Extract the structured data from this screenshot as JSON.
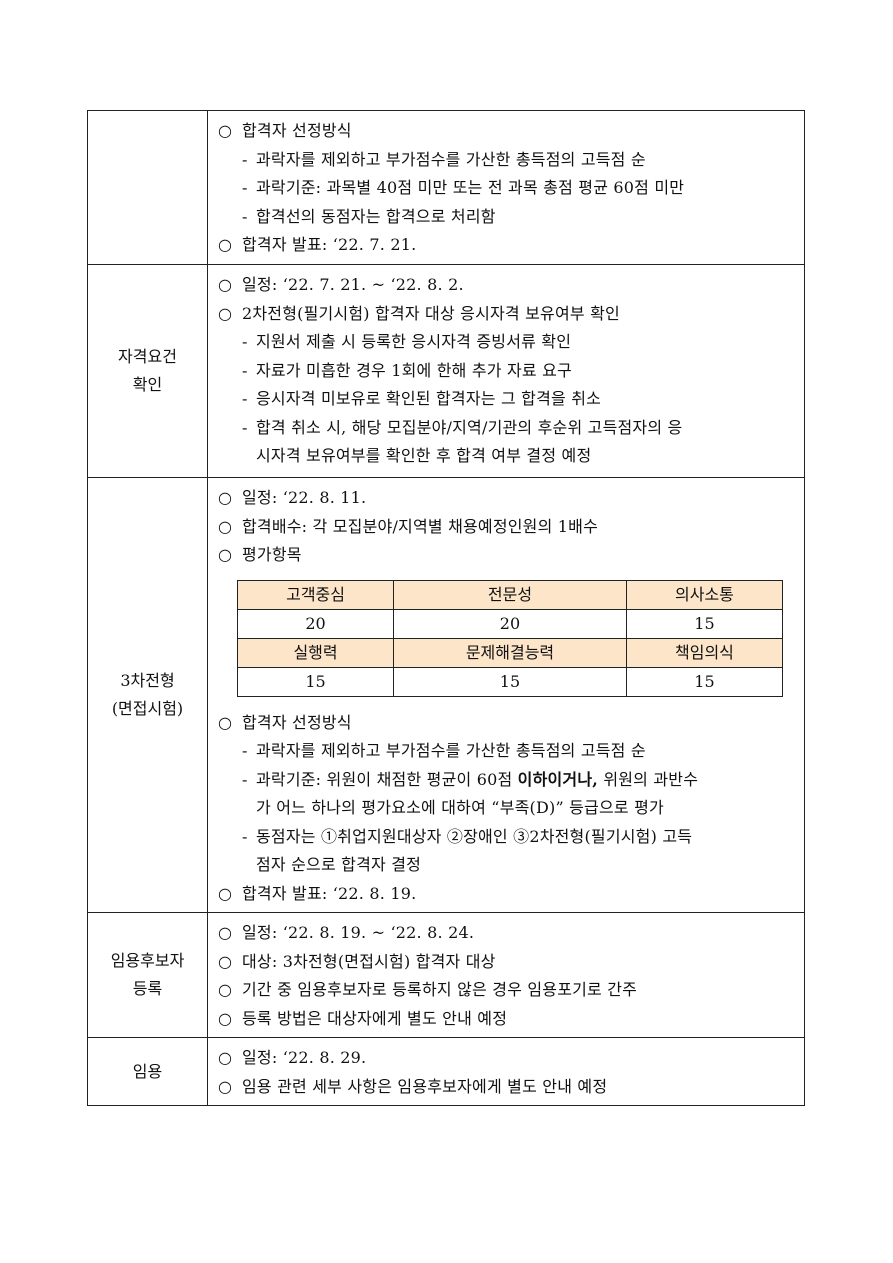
{
  "rows": [
    {
      "label": "",
      "lines": [
        {
          "type": "circle",
          "text": "합격자 선정방식"
        },
        {
          "type": "dash",
          "text": "과락자를 제외하고 부가점수를 가산한 총득점의 고득점 순"
        },
        {
          "type": "dash",
          "text": "과락기준: 과목별 40점 미만 또는 전 과목 총점 평균 60점 미만"
        },
        {
          "type": "dash",
          "text": "합격선의 동점자는 합격으로 처리함"
        },
        {
          "type": "circle",
          "text": "합격자 발표: ‘22. 7. 21."
        }
      ]
    },
    {
      "label": "자격요건\n확인",
      "lines": [
        {
          "type": "circle",
          "text": "일정: ‘22. 7. 21. ~ ‘22. 8. 2."
        },
        {
          "type": "circle",
          "text": "2차전형(필기시험) 합격자 대상 응시자격 보유여부 확인"
        },
        {
          "type": "dash",
          "text": "지원서 제출 시 등록한 응시자격 증빙서류 확인"
        },
        {
          "type": "dash",
          "text": "자료가 미흡한 경우 1회에 한해 추가 자료 요구"
        },
        {
          "type": "dash",
          "text": "응시자격 미보유로 확인된 합격자는 그 합격을 취소"
        },
        {
          "type": "dash",
          "text": "합격 취소 시, 해당 모집분야/지역/기관의 후순위 고득점자의 응"
        },
        {
          "type": "cont",
          "text": "시자격 보유여부를 확인한 후 합격 여부 결정 예정"
        }
      ]
    },
    {
      "label": "3차전형\n(면접시험)",
      "lines": [
        {
          "type": "circle",
          "text": "일정: ‘22. 8. 11."
        },
        {
          "type": "circle",
          "text": "합격배수: 각 모집분야/지역별 채용예정인원의 1배수"
        },
        {
          "type": "circle",
          "text": "평가항목"
        },
        {
          "type": "table"
        },
        {
          "type": "circle",
          "text": "합격자 선정방식"
        },
        {
          "type": "dash",
          "text": "과락자를 제외하고 부가점수를 가산한 총득점의 고득점 순"
        },
        {
          "type": "dash",
          "text": "과락기준: 위원이 채점한 평균이 60점 ",
          "bold": "이하이거나,",
          "after": " 위원의 과반수"
        },
        {
          "type": "cont",
          "text": "가 어느 하나의 평가요소에 대하여 “부족(D)” 등급으로 평가"
        },
        {
          "type": "dash",
          "text": "동점자는 ①취업지원대상자 ②장애인 ③2차전형(필기시험) 고득"
        },
        {
          "type": "cont",
          "text": "점자 순으로 합격자 결정"
        },
        {
          "type": "circle",
          "text": "합격자 발표: ‘22. 8. 19."
        }
      ]
    },
    {
      "label": "임용후보자\n등록",
      "lines": [
        {
          "type": "circle",
          "text": "일정: ‘22. 8. 19. ~ ‘22. 8. 24."
        },
        {
          "type": "circle",
          "text": "대상: 3차전형(면접시험) 합격자 대상"
        },
        {
          "type": "circle",
          "text": "기간 중 임용후보자로 등록하지 않은 경우 임용포기로 간주"
        },
        {
          "type": "circle",
          "text": "등록 방법은 대상자에게 별도 안내 예정"
        }
      ]
    },
    {
      "label": "임용",
      "lines": [
        {
          "type": "circle",
          "text": "일정: ‘22. 8. 29."
        },
        {
          "type": "circle",
          "text": "임용 관련 세부 사항은 임용후보자에게 별도 안내 예정"
        }
      ]
    }
  ],
  "eval_table": {
    "header_color": "#fde5c9",
    "rows": [
      {
        "header": true,
        "cells": [
          "고객중심",
          "전문성",
          "의사소통"
        ]
      },
      {
        "header": false,
        "cells": [
          "20",
          "20",
          "15"
        ]
      },
      {
        "header": true,
        "cells": [
          "실행력",
          "문제해결능력",
          "책임의식"
        ]
      },
      {
        "header": false,
        "cells": [
          "15",
          "15",
          "15"
        ]
      }
    ]
  },
  "markers": {
    "circle": "○",
    "dash": "-"
  }
}
